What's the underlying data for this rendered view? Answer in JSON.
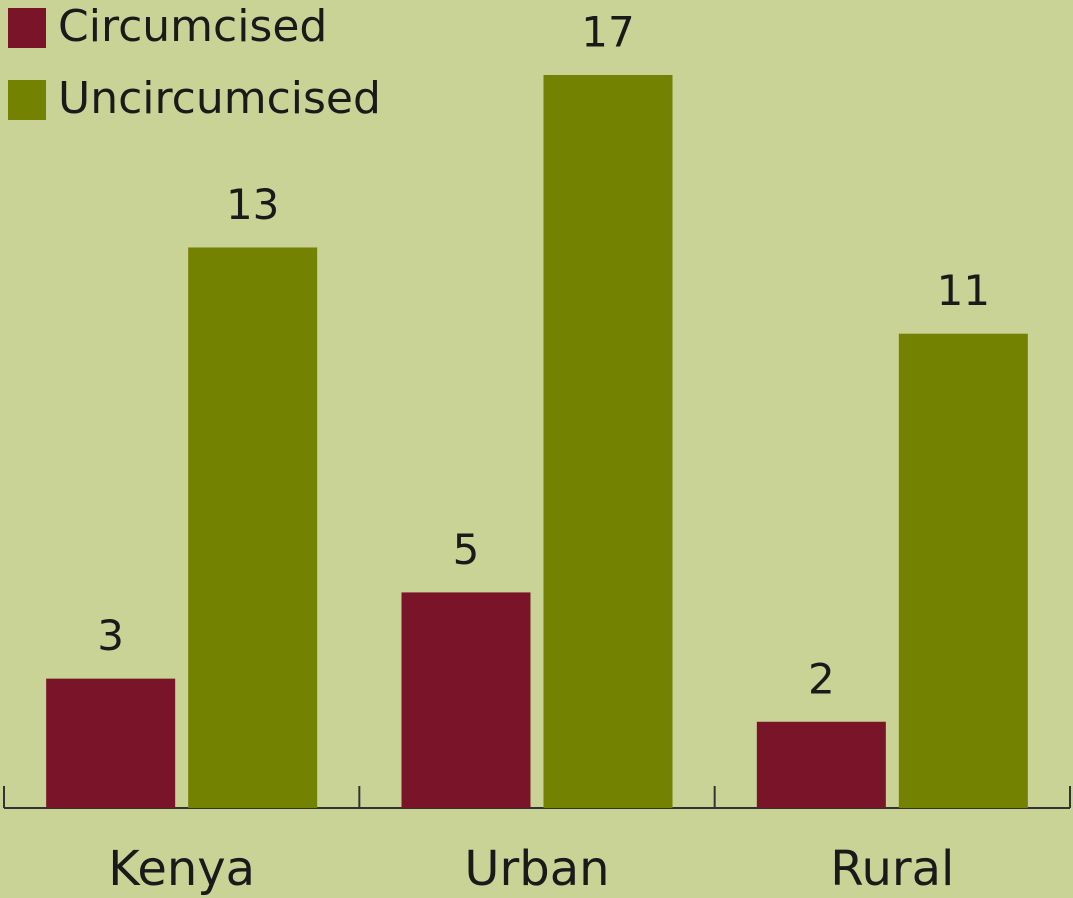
{
  "chart_data": {
    "type": "bar",
    "categories": [
      "Kenya",
      "Urban",
      "Rural"
    ],
    "series": [
      {
        "name": "Circumcised",
        "color": "#7a1429",
        "values": [
          3,
          5,
          2
        ]
      },
      {
        "name": "Uncircumcised",
        "color": "#738200",
        "values": [
          13,
          17,
          11
        ]
      }
    ]
  }
}
